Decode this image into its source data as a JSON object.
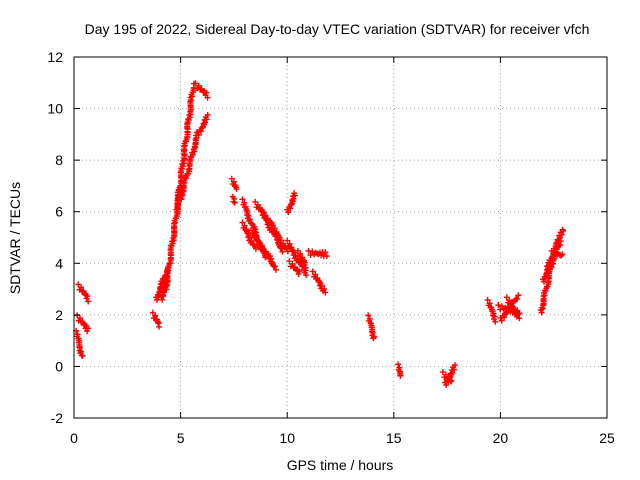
{
  "chart_data": {
    "type": "scatter",
    "title": "Day 195 of 2022, Sidereal Day-to-day VTEC variation (SDTVAR) for receiver vfch",
    "xlabel": "GPS time / hours",
    "ylabel": "SDTVAR / TECUs",
    "xlim": [
      0,
      25
    ],
    "ylim": [
      -2,
      12
    ],
    "xticks": [
      0,
      5,
      10,
      15,
      20,
      25
    ],
    "yticks": [
      -2,
      0,
      2,
      4,
      6,
      8,
      10,
      12
    ],
    "grid": true,
    "marker": "+",
    "series": [
      {
        "name": "SDTVAR",
        "color": "#ff0000",
        "segments": [
          [
            [
              0.1,
              1.3
            ],
            [
              0.4,
              0.4
            ]
          ],
          [
            [
              0.15,
              1.9
            ],
            [
              0.7,
              1.4
            ]
          ],
          [
            [
              0.2,
              3.1
            ],
            [
              0.7,
              2.6
            ]
          ],
          [
            [
              3.7,
              2.0
            ],
            [
              4.0,
              1.6
            ]
          ],
          [
            [
              3.85,
              2.6
            ],
            [
              4.4,
              3.8
            ]
          ],
          [
            [
              4.1,
              2.6
            ],
            [
              4.35,
              3.5
            ]
          ],
          [
            [
              4.3,
              3.0
            ],
            [
              5.0,
              7.0
            ]
          ],
          [
            [
              4.8,
              6.0
            ],
            [
              5.6,
              10.9
            ]
          ],
          [
            [
              5.0,
              6.5
            ],
            [
              5.8,
              9.0
            ]
          ],
          [
            [
              5.7,
              10.9
            ],
            [
              6.3,
              10.5
            ]
          ],
          [
            [
              5.8,
              9.0
            ],
            [
              6.3,
              9.7
            ]
          ],
          [
            [
              7.4,
              7.2
            ],
            [
              7.6,
              6.9
            ]
          ],
          [
            [
              7.45,
              6.5
            ],
            [
              7.5,
              6.4
            ]
          ],
          [
            [
              7.9,
              6.4
            ],
            [
              9.0,
              4.2
            ]
          ],
          [
            [
              7.9,
              5.5
            ],
            [
              8.5,
              4.6
            ]
          ],
          [
            [
              8.3,
              5.2
            ],
            [
              9.5,
              3.8
            ]
          ],
          [
            [
              8.5,
              6.3
            ],
            [
              9.3,
              5.5
            ]
          ],
          [
            [
              8.8,
              6.0
            ],
            [
              9.8,
              4.5
            ]
          ],
          [
            [
              9.3,
              5.4
            ],
            [
              10.0,
              4.5
            ]
          ],
          [
            [
              10.0,
              6.0
            ],
            [
              10.4,
              6.7
            ]
          ],
          [
            [
              10.0,
              4.8
            ],
            [
              10.9,
              3.6
            ]
          ],
          [
            [
              10.1,
              4.0
            ],
            [
              10.6,
              3.6
            ]
          ],
          [
            [
              10.5,
              4.4
            ],
            [
              10.9,
              3.9
            ]
          ],
          [
            [
              11.0,
              4.4
            ],
            [
              11.9,
              4.35
            ]
          ],
          [
            [
              11.2,
              3.6
            ],
            [
              11.8,
              2.9
            ]
          ],
          [
            [
              13.8,
              1.9
            ],
            [
              14.1,
              1.1
            ]
          ],
          [
            [
              15.2,
              0.0
            ],
            [
              15.3,
              -0.4
            ]
          ],
          [
            [
              17.4,
              -0.7
            ],
            [
              17.9,
              0.0
            ]
          ],
          [
            [
              17.3,
              -0.3
            ],
            [
              17.7,
              -0.6
            ]
          ],
          [
            [
              19.4,
              2.5
            ],
            [
              19.8,
              1.8
            ]
          ],
          [
            [
              19.9,
              2.3
            ],
            [
              20.9,
              2.1
            ]
          ],
          [
            [
              20.0,
              1.8
            ],
            [
              20.8,
              2.7
            ]
          ],
          [
            [
              20.3,
              2.6
            ],
            [
              20.9,
              1.9
            ]
          ],
          [
            [
              21.9,
              2.1
            ],
            [
              22.5,
              4.3
            ]
          ],
          [
            [
              22.0,
              3.3
            ],
            [
              22.9,
              5.3
            ]
          ],
          [
            [
              22.2,
              3.8
            ],
            [
              22.8,
              4.8
            ]
          ],
          [
            [
              22.4,
              4.4
            ],
            [
              22.9,
              4.3
            ]
          ]
        ]
      }
    ]
  }
}
